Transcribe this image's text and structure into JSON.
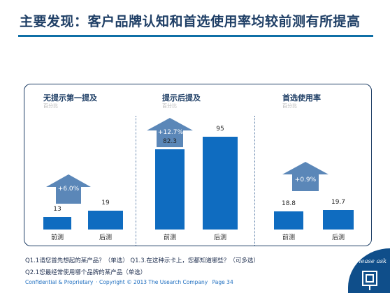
{
  "title": "主要发现：客户品牌认知和首选使用率均较前测有所提高",
  "chart_data": [
    {
      "type": "bar",
      "title": "无提示第一提及",
      "subtitle": "百分比",
      "categories": [
        "前测",
        "后测"
      ],
      "values": [
        13,
        19
      ],
      "change_label": "+6.0%",
      "ylim": [
        0,
        100
      ]
    },
    {
      "type": "bar",
      "title": "提示后提及",
      "subtitle": "百分比",
      "categories": [
        "前测",
        "后测"
      ],
      "values": [
        82.3,
        95
      ],
      "change_label": "+12.7%",
      "ylim": [
        0,
        100
      ]
    },
    {
      "type": "bar",
      "title": "首选使用率",
      "subtitle": "百分比",
      "categories": [
        "前测",
        "后测"
      ],
      "values": [
        18.8,
        19.7
      ],
      "change_label": "+0.9%",
      "ylim": [
        0,
        100
      ]
    }
  ],
  "colors": {
    "bar": "#0f6cc0",
    "arrow": "#5b87b8",
    "title": "#1f3f66",
    "rule": "#0f6fa6"
  },
  "questions": {
    "q1": "Q1.1请您首先想起的某产品？（单选）  Q1.3.在这种示卡上，您都知道哪些？（可多选）",
    "q2": "Q2.1您最经常使用哪个品牌的某产品（单选）"
  },
  "footer": {
    "confidential": "Confidential & Proprietary",
    "copyright": "Copyright © 2013 The Usearch Company",
    "page": "Page 34"
  },
  "logo_text": "Please ask"
}
